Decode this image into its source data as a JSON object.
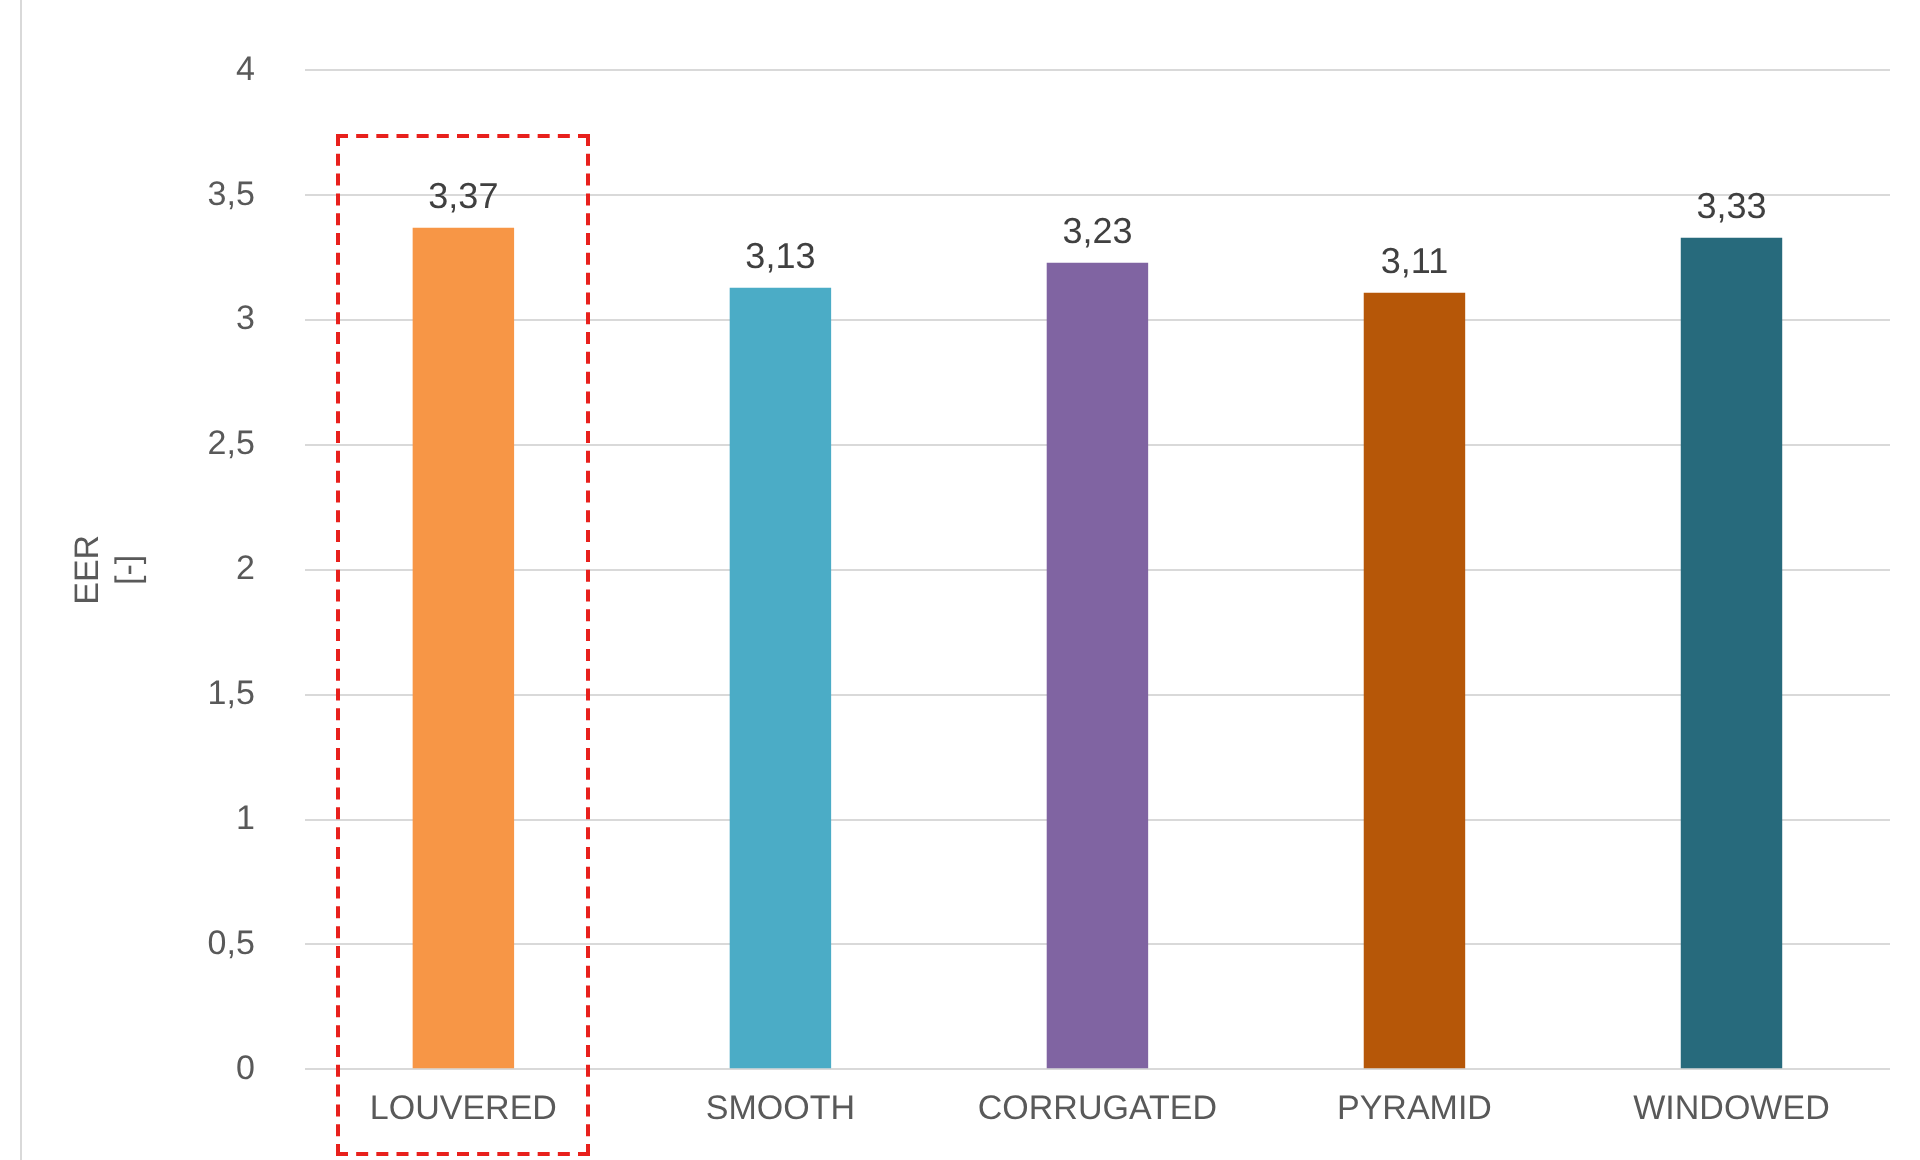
{
  "chart_data": {
    "type": "bar",
    "ylabel": "EER\n[-]",
    "categories": [
      "LOUVERED",
      "SMOOTH",
      "CORRUGATED",
      "PYRAMID",
      "WINDOWED"
    ],
    "values": [
      3.37,
      3.13,
      3.23,
      3.11,
      3.33
    ],
    "colors": [
      "#f79646",
      "#4bacc6",
      "#8064a2",
      "#b65708",
      "#276a7c"
    ],
    "value_labels": [
      "3,37",
      "3,13",
      "3,23",
      "3,11",
      "3,33"
    ],
    "ylim": [
      0,
      4
    ],
    "yticks": [
      0,
      {
        "value": 0.5,
        "label": "0,5"
      },
      1,
      {
        "value": 1.5,
        "label": "1,5"
      },
      2,
      {
        "value": 2.5,
        "label": "2,5"
      },
      3,
      {
        "value": 3.5,
        "label": "3,5"
      },
      4
    ],
    "grid": "y",
    "legend": false
  }
}
